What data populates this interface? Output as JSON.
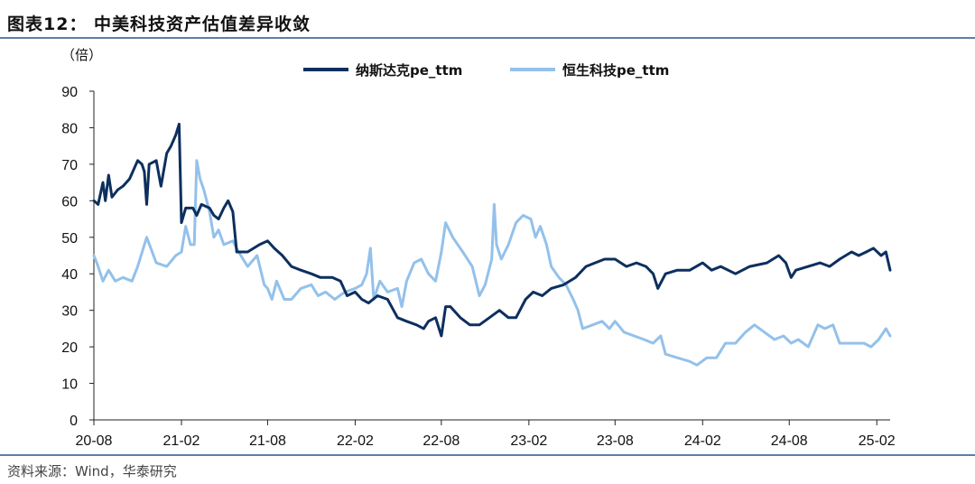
{
  "header": {
    "title": "图表12：  中美科技资产估值差异收敛"
  },
  "footer": {
    "source": "资料来源：Wind，华泰研究"
  },
  "chart_data": {
    "type": "line",
    "ylabel": "（倍）",
    "ylim": [
      0,
      90
    ],
    "yticks": [
      0,
      10,
      20,
      30,
      40,
      50,
      60,
      70,
      80,
      90
    ],
    "xlim": [
      "20-08",
      "25-03"
    ],
    "xticks": [
      "20-08",
      "21-02",
      "21-08",
      "22-02",
      "22-08",
      "23-02",
      "23-08",
      "24-02",
      "24-08",
      "25-02"
    ],
    "legend_position": "top",
    "series": [
      {
        "name": "纳斯达克pe_ttm",
        "color": "#0d2f5e",
        "points": [
          [
            "2020-08-01",
            60
          ],
          [
            "2020-08-10",
            59
          ],
          [
            "2020-08-20",
            65
          ],
          [
            "2020-08-25",
            60
          ],
          [
            "2020-09-01",
            67
          ],
          [
            "2020-09-08",
            61
          ],
          [
            "2020-09-20",
            63
          ],
          [
            "2020-10-01",
            64
          ],
          [
            "2020-10-15",
            66
          ],
          [
            "2020-11-01",
            71
          ],
          [
            "2020-11-10",
            70
          ],
          [
            "2020-11-15",
            68
          ],
          [
            "2020-11-20",
            59
          ],
          [
            "2020-11-25",
            70
          ],
          [
            "2020-12-10",
            71
          ],
          [
            "2020-12-20",
            64
          ],
          [
            "2021-01-01",
            73
          ],
          [
            "2021-01-10",
            75
          ],
          [
            "2021-01-20",
            78
          ],
          [
            "2021-01-27",
            81
          ],
          [
            "2021-02-01",
            54
          ],
          [
            "2021-02-10",
            58
          ],
          [
            "2021-02-25",
            58
          ],
          [
            "2021-03-05",
            56
          ],
          [
            "2021-03-15",
            59
          ],
          [
            "2021-04-01",
            58
          ],
          [
            "2021-04-10",
            56
          ],
          [
            "2021-04-20",
            55
          ],
          [
            "2021-05-01",
            58
          ],
          [
            "2021-05-10",
            60
          ],
          [
            "2021-05-20",
            57
          ],
          [
            "2021-05-28",
            46
          ],
          [
            "2021-06-20",
            46
          ],
          [
            "2021-07-15",
            48
          ],
          [
            "2021-08-01",
            49
          ],
          [
            "2021-08-15",
            47
          ],
          [
            "2021-09-01",
            45
          ],
          [
            "2021-09-20",
            42
          ],
          [
            "2021-10-10",
            41
          ],
          [
            "2021-11-01",
            40
          ],
          [
            "2021-11-20",
            39
          ],
          [
            "2021-12-15",
            39
          ],
          [
            "2022-01-01",
            38
          ],
          [
            "2022-01-15",
            34
          ],
          [
            "2022-02-01",
            35
          ],
          [
            "2022-02-15",
            33
          ],
          [
            "2022-03-01",
            32
          ],
          [
            "2022-03-20",
            34
          ],
          [
            "2022-04-10",
            33
          ],
          [
            "2022-05-01",
            28
          ],
          [
            "2022-05-20",
            27
          ],
          [
            "2022-06-10",
            26
          ],
          [
            "2022-06-25",
            25
          ],
          [
            "2022-07-05",
            27
          ],
          [
            "2022-07-20",
            28
          ],
          [
            "2022-08-01",
            23
          ],
          [
            "2022-08-10",
            31
          ],
          [
            "2022-08-20",
            31
          ],
          [
            "2022-09-10",
            28
          ],
          [
            "2022-09-30",
            26
          ],
          [
            "2022-10-20",
            26
          ],
          [
            "2022-11-10",
            28
          ],
          [
            "2022-12-01",
            30
          ],
          [
            "2022-12-20",
            28
          ],
          [
            "2023-01-05",
            28
          ],
          [
            "2023-01-25",
            33
          ],
          [
            "2023-02-10",
            35
          ],
          [
            "2023-03-01",
            34
          ],
          [
            "2023-03-20",
            36
          ],
          [
            "2023-04-15",
            37
          ],
          [
            "2023-05-10",
            39
          ],
          [
            "2023-06-01",
            42
          ],
          [
            "2023-06-20",
            43
          ],
          [
            "2023-07-10",
            44
          ],
          [
            "2023-08-01",
            44
          ],
          [
            "2023-08-25",
            42
          ],
          [
            "2023-09-15",
            43
          ],
          [
            "2023-10-05",
            42
          ],
          [
            "2023-10-20",
            40
          ],
          [
            "2023-10-30",
            36
          ],
          [
            "2023-11-15",
            40
          ],
          [
            "2023-12-10",
            41
          ],
          [
            "2024-01-05",
            41
          ],
          [
            "2024-02-01",
            43
          ],
          [
            "2024-02-20",
            41
          ],
          [
            "2024-03-10",
            42
          ],
          [
            "2024-04-10",
            40
          ],
          [
            "2024-05-10",
            42
          ],
          [
            "2024-06-15",
            43
          ],
          [
            "2024-07-10",
            45
          ],
          [
            "2024-07-25",
            43
          ],
          [
            "2024-08-05",
            39
          ],
          [
            "2024-08-15",
            41
          ],
          [
            "2024-09-10",
            42
          ],
          [
            "2024-10-05",
            43
          ],
          [
            "2024-10-25",
            42
          ],
          [
            "2024-11-15",
            44
          ],
          [
            "2024-12-10",
            46
          ],
          [
            "2024-12-25",
            45
          ],
          [
            "2025-01-10",
            46
          ],
          [
            "2025-01-25",
            47
          ],
          [
            "2025-02-10",
            45
          ],
          [
            "2025-02-20",
            46
          ],
          [
            "2025-03-01",
            41
          ]
        ]
      },
      {
        "name": "恒生科技pe_ttm",
        "color": "#93c1ea",
        "points": [
          [
            "2020-08-01",
            45
          ],
          [
            "2020-08-10",
            42
          ],
          [
            "2020-08-20",
            38
          ],
          [
            "2020-09-01",
            41
          ],
          [
            "2020-09-15",
            38
          ],
          [
            "2020-10-01",
            39
          ],
          [
            "2020-10-20",
            38
          ],
          [
            "2020-11-01",
            42
          ],
          [
            "2020-11-20",
            50
          ],
          [
            "2020-12-10",
            43
          ],
          [
            "2021-01-01",
            42
          ],
          [
            "2021-01-20",
            45
          ],
          [
            "2021-02-01",
            46
          ],
          [
            "2021-02-10",
            53
          ],
          [
            "2021-02-20",
            48
          ],
          [
            "2021-02-28",
            48
          ],
          [
            "2021-03-05",
            71
          ],
          [
            "2021-03-12",
            66
          ],
          [
            "2021-03-20",
            63
          ],
          [
            "2021-04-01",
            57
          ],
          [
            "2021-04-10",
            50
          ],
          [
            "2021-04-20",
            52
          ],
          [
            "2021-05-01",
            48
          ],
          [
            "2021-05-20",
            49
          ],
          [
            "2021-06-01",
            46
          ],
          [
            "2021-06-20",
            42
          ],
          [
            "2021-07-10",
            45
          ],
          [
            "2021-07-25",
            37
          ],
          [
            "2021-08-01",
            36
          ],
          [
            "2021-08-10",
            33
          ],
          [
            "2021-08-20",
            38
          ],
          [
            "2021-09-05",
            33
          ],
          [
            "2021-09-20",
            33
          ],
          [
            "2021-10-10",
            36
          ],
          [
            "2021-11-01",
            37
          ],
          [
            "2021-11-15",
            34
          ],
          [
            "2021-12-01",
            35
          ],
          [
            "2021-12-20",
            33
          ],
          [
            "2022-01-10",
            35
          ],
          [
            "2022-02-01",
            36
          ],
          [
            "2022-02-15",
            37
          ],
          [
            "2022-02-25",
            40
          ],
          [
            "2022-03-05",
            47
          ],
          [
            "2022-03-12",
            33
          ],
          [
            "2022-03-25",
            38
          ],
          [
            "2022-04-10",
            35
          ],
          [
            "2022-05-01",
            36
          ],
          [
            "2022-05-10",
            31
          ],
          [
            "2022-05-20",
            38
          ],
          [
            "2022-06-05",
            43
          ],
          [
            "2022-06-20",
            44
          ],
          [
            "2022-07-05",
            40
          ],
          [
            "2022-07-20",
            38
          ],
          [
            "2022-08-01",
            46
          ],
          [
            "2022-08-10",
            54
          ],
          [
            "2022-08-25",
            50
          ],
          [
            "2022-09-15",
            46
          ],
          [
            "2022-10-05",
            42
          ],
          [
            "2022-10-20",
            34
          ],
          [
            "2022-11-01",
            37
          ],
          [
            "2022-11-15",
            44
          ],
          [
            "2022-11-20",
            59
          ],
          [
            "2022-11-25",
            48
          ],
          [
            "2022-12-05",
            44
          ],
          [
            "2022-12-20",
            48
          ],
          [
            "2023-01-05",
            54
          ],
          [
            "2023-01-20",
            56
          ],
          [
            "2023-02-05",
            55
          ],
          [
            "2023-02-15",
            50
          ],
          [
            "2023-02-25",
            53
          ],
          [
            "2023-03-10",
            48
          ],
          [
            "2023-03-20",
            42
          ],
          [
            "2023-04-05",
            39
          ],
          [
            "2023-04-20",
            37
          ],
          [
            "2023-05-05",
            33
          ],
          [
            "2023-05-15",
            30
          ],
          [
            "2023-05-25",
            25
          ],
          [
            "2023-06-15",
            26
          ],
          [
            "2023-07-05",
            27
          ],
          [
            "2023-07-20",
            25
          ],
          [
            "2023-08-01",
            27
          ],
          [
            "2023-08-20",
            24
          ],
          [
            "2023-09-10",
            23
          ],
          [
            "2023-10-01",
            22
          ],
          [
            "2023-10-20",
            21
          ],
          [
            "2023-11-05",
            23
          ],
          [
            "2023-11-15",
            18
          ],
          [
            "2023-12-10",
            17
          ],
          [
            "2024-01-05",
            16
          ],
          [
            "2024-01-20",
            15
          ],
          [
            "2024-02-10",
            17
          ],
          [
            "2024-03-01",
            17
          ],
          [
            "2024-03-20",
            21
          ],
          [
            "2024-04-10",
            21
          ],
          [
            "2024-05-01",
            24
          ],
          [
            "2024-05-20",
            26
          ],
          [
            "2024-06-10",
            24
          ],
          [
            "2024-07-01",
            22
          ],
          [
            "2024-07-20",
            23
          ],
          [
            "2024-08-05",
            21
          ],
          [
            "2024-08-20",
            22
          ],
          [
            "2024-09-10",
            20
          ],
          [
            "2024-09-30",
            26
          ],
          [
            "2024-10-15",
            25
          ],
          [
            "2024-11-01",
            26
          ],
          [
            "2024-11-15",
            21
          ],
          [
            "2024-12-10",
            21
          ],
          [
            "2025-01-05",
            21
          ],
          [
            "2025-01-20",
            20
          ],
          [
            "2025-02-05",
            22
          ],
          [
            "2025-02-20",
            25
          ],
          [
            "2025-03-01",
            23
          ]
        ]
      }
    ]
  }
}
